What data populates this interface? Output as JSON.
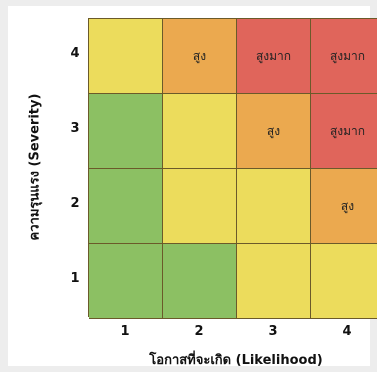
{
  "colors": {
    "green": "#8cc063",
    "yellow": "#ecdc5c",
    "orange": "#eba94f",
    "red": "#e0655b"
  },
  "axes": {
    "y_title": "ความรุนแรง (Severity)",
    "x_title": "โอกาสที่จะเกิด (Likelihood)",
    "y_ticks": [
      "4",
      "3",
      "2",
      "1"
    ],
    "x_ticks": [
      "1",
      "2",
      "3",
      "4"
    ]
  },
  "matrix": {
    "rows": [
      [
        {
          "color": "yellow",
          "label": ""
        },
        {
          "color": "orange",
          "label": "สูง"
        },
        {
          "color": "red",
          "label": "สูงมาก"
        },
        {
          "color": "red",
          "label": "สูงมาก"
        }
      ],
      [
        {
          "color": "green",
          "label": ""
        },
        {
          "color": "yellow",
          "label": ""
        },
        {
          "color": "orange",
          "label": "สูง"
        },
        {
          "color": "red",
          "label": "สูงมาก"
        }
      ],
      [
        {
          "color": "green",
          "label": ""
        },
        {
          "color": "yellow",
          "label": ""
        },
        {
          "color": "yellow",
          "label": ""
        },
        {
          "color": "orange",
          "label": "สูง"
        }
      ],
      [
        {
          "color": "green",
          "label": ""
        },
        {
          "color": "green",
          "label": ""
        },
        {
          "color": "yellow",
          "label": ""
        },
        {
          "color": "yellow",
          "label": ""
        }
      ]
    ]
  }
}
